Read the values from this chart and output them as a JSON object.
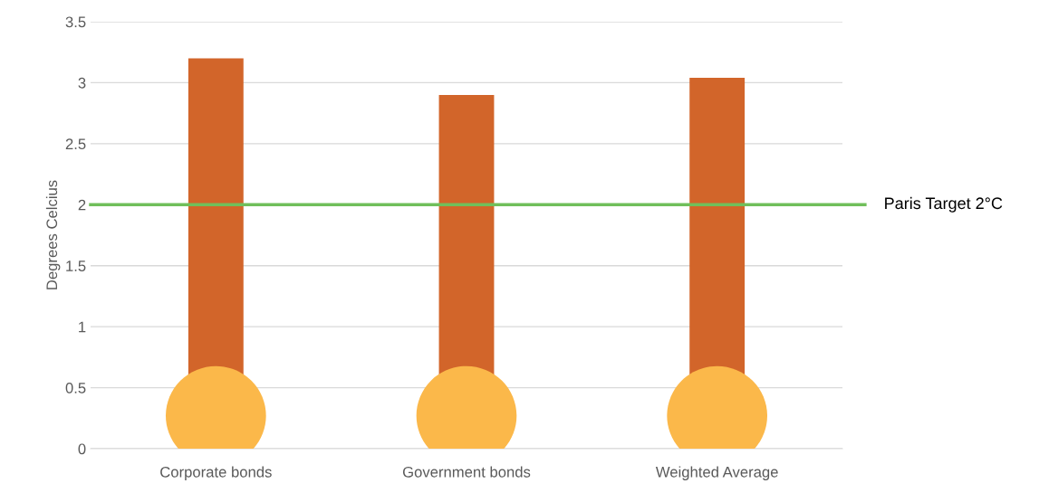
{
  "chart_data": {
    "type": "bar",
    "ylabel": "Degrees Celcius",
    "categories": [
      "Corporate bonds",
      "Government bonds",
      "Weighted Average"
    ],
    "values": [
      3.2,
      2.9,
      3.04
    ],
    "color": "#d2652a",
    "ylim": [
      0,
      3.5
    ],
    "yticks": [
      0,
      0.5,
      1,
      1.5,
      2,
      2.5,
      3,
      3.5
    ],
    "grid": "y",
    "ref_lines": [
      {
        "axis": "y",
        "value": 2,
        "label": "Paris Target 2°C",
        "color": "#70bf5a"
      }
    ]
  }
}
